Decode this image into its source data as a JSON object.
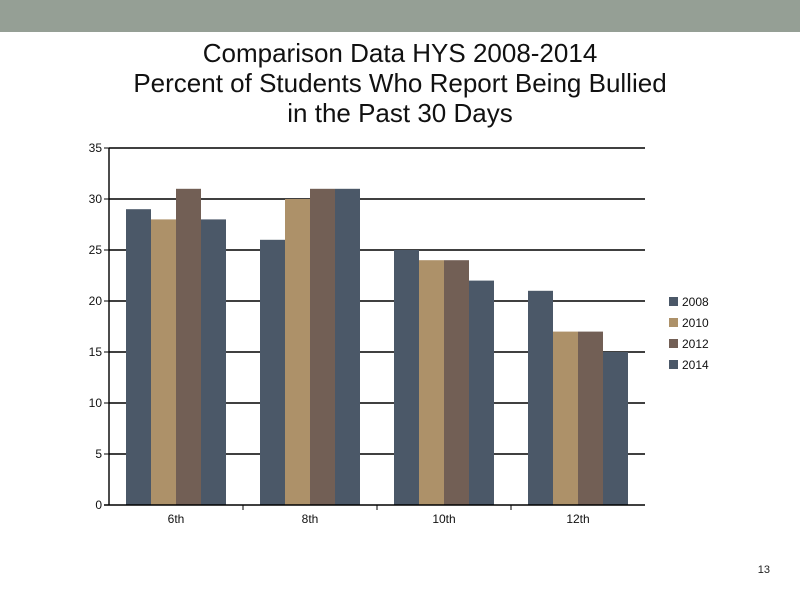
{
  "slide": {
    "number": "13"
  },
  "chart_data": {
    "type": "bar",
    "title": [
      "Comparison Data HYS 2008-2014",
      "Percent of Students Who Report Being Bullied",
      "in the Past 30 Days"
    ],
    "categories": [
      "6th",
      "8th",
      "10th",
      "12th"
    ],
    "series": [
      {
        "name": "2008",
        "color": "#4b5868",
        "values": [
          29,
          26,
          25,
          21
        ]
      },
      {
        "name": "2010",
        "color": "#ad9169",
        "values": [
          28,
          30,
          24,
          17
        ]
      },
      {
        "name": "2012",
        "color": "#725f55",
        "values": [
          31,
          31,
          24,
          17
        ]
      },
      {
        "name": "2014",
        "color": "#4b5868",
        "values": [
          28,
          31,
          22,
          15
        ]
      }
    ],
    "xlabel": "",
    "ylabel": "",
    "ylim": [
      0,
      35
    ],
    "yticks": [
      0,
      5,
      10,
      15,
      20,
      25,
      30,
      35
    ],
    "grid": true,
    "legend": "right"
  }
}
